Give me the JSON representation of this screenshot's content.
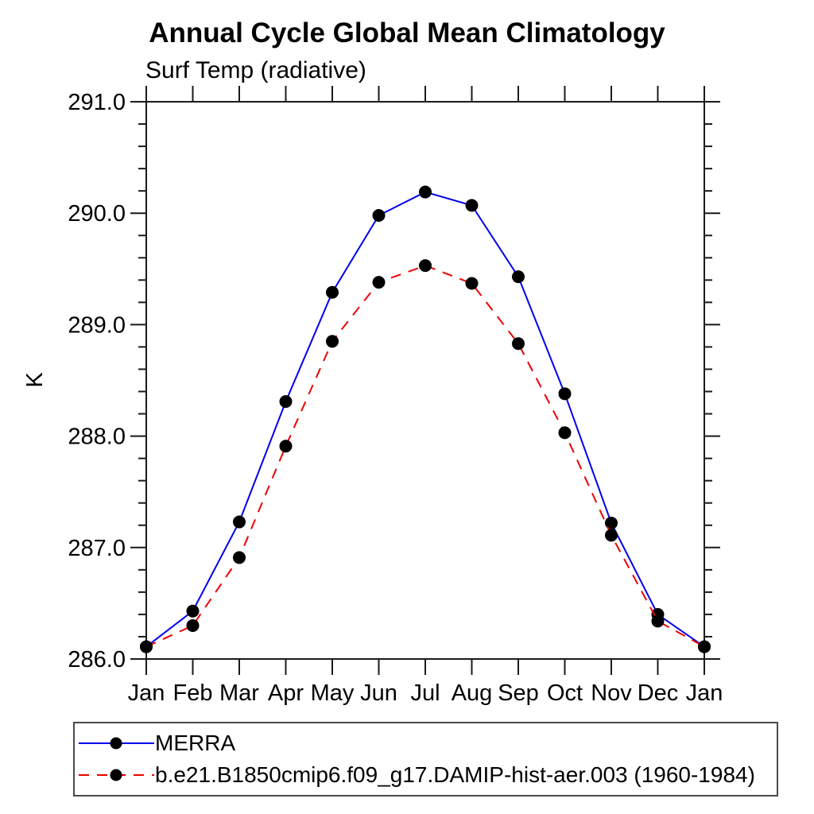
{
  "title": "Annual Cycle Global Mean Climatology",
  "subtitle": "Surf Temp (radiative)",
  "legend": {
    "entries": [
      {
        "label": "MERRA",
        "line_color": "#0000ee",
        "line_style": "solid",
        "marker": "filled-circle",
        "marker_color": "#000000"
      },
      {
        "label": "b.e21.B1850cmip6.f09_g17.DAMIP-hist-aer.003 (1960-1984)",
        "line_color": "#ee0000",
        "line_style": "dashed",
        "marker": "filled-circle",
        "marker_color": "#000000"
      }
    ]
  },
  "colors": {
    "series_merra": "#0000ee",
    "series_model": "#ee0000",
    "marker": "#000000",
    "axis": "#1a1a1a",
    "text": "#000000",
    "background": "#ffffff",
    "legend_border": "#4a4a4a"
  },
  "chart_data": {
    "type": "line",
    "title": "Annual Cycle Global Mean Climatology",
    "subtitle": "Surf Temp (radiative)",
    "xlabel": "",
    "ylabel": "K",
    "categories": [
      "Jan",
      "Feb",
      "Mar",
      "Apr",
      "May",
      "Jun",
      "Jul",
      "Aug",
      "Sep",
      "Oct",
      "Nov",
      "Dec",
      "Jan"
    ],
    "series": [
      {
        "name": "MERRA",
        "color": "#0000ee",
        "style": "solid",
        "values": [
          286.11,
          286.43,
          287.23,
          288.31,
          289.29,
          289.98,
          290.19,
          290.07,
          289.43,
          288.38,
          287.22,
          286.4,
          286.11
        ]
      },
      {
        "name": "b.e21.B1850cmip6.f09_g17.DAMIP-hist-aer.003 (1960-1984)",
        "color": "#ee0000",
        "style": "dashed",
        "values": [
          286.11,
          286.3,
          286.91,
          287.91,
          288.85,
          289.38,
          289.53,
          289.37,
          288.83,
          288.03,
          287.11,
          286.34,
          286.11
        ]
      }
    ],
    "ylim": [
      286.0,
      291.0
    ],
    "y_major_step": 1.0,
    "y_minor_step": 0.2,
    "y_ticklabels": [
      "286.0",
      "287.0",
      "288.0",
      "289.0",
      "290.0",
      "291.0"
    ],
    "grid": false,
    "legend_position": "bottom-left-box",
    "marker": "filled-circle",
    "marker_color": "#000000"
  }
}
